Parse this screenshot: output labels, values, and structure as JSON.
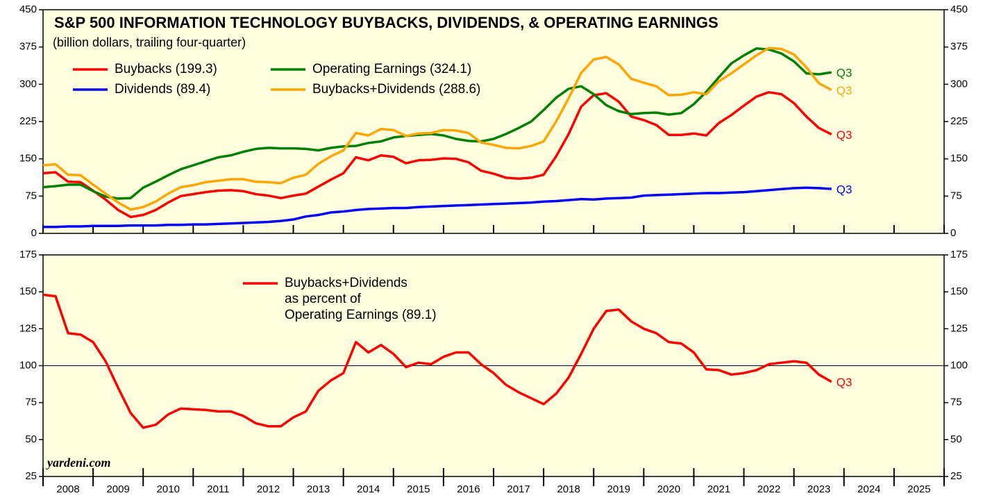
{
  "chart_data": [
    {
      "type": "line",
      "title": "S&P 500 INFORMATION TECHNOLOGY BUYBACKS, DIVIDENDS, & OPERATING EARNINGS",
      "subtitle": "(billion dollars, trailing four-quarter)",
      "x": [
        2008,
        2008.25,
        2008.5,
        2008.75,
        2009,
        2009.25,
        2009.5,
        2009.75,
        2010,
        2010.25,
        2010.5,
        2010.75,
        2011,
        2011.25,
        2011.5,
        2011.75,
        2012,
        2012.25,
        2012.5,
        2012.75,
        2013,
        2013.25,
        2013.5,
        2013.75,
        2014,
        2014.25,
        2014.5,
        2014.75,
        2015,
        2015.25,
        2015.5,
        2015.75,
        2016,
        2016.25,
        2016.5,
        2016.75,
        2017,
        2017.25,
        2017.5,
        2017.75,
        2018,
        2018.25,
        2018.5,
        2018.75,
        2019,
        2019.25,
        2019.5,
        2019.75,
        2020,
        2020.25,
        2020.5,
        2020.75,
        2021,
        2021.25,
        2021.5,
        2021.75,
        2022,
        2022.25,
        2022.5,
        2022.75,
        2023,
        2023.25,
        2023.5,
        2023.75
      ],
      "xlim": [
        2008,
        2026
      ],
      "xticks": [
        2008,
        2009,
        2010,
        2011,
        2012,
        2013,
        2014,
        2015,
        2016,
        2017,
        2018,
        2019,
        2020,
        2021,
        2022,
        2023,
        2024,
        2025,
        2026
      ],
      "ylim": [
        0,
        450
      ],
      "yticks": [
        0,
        75,
        150,
        225,
        300,
        375,
        450
      ],
      "series": [
        {
          "name": "Buybacks (199.3)",
          "color": "#ff0000",
          "end_label": "Q3",
          "values": [
            121,
            123,
            104,
            103,
            86,
            68,
            47,
            33,
            37,
            47,
            62,
            75,
            79,
            83,
            86,
            87,
            85,
            79,
            76,
            71,
            76,
            80,
            94,
            108,
            121,
            153,
            147,
            157,
            154,
            141,
            147,
            148,
            151,
            150,
            143,
            126,
            120,
            112,
            110,
            112,
            118,
            155,
            200,
            255,
            278,
            282,
            265,
            235,
            228,
            218,
            198,
            198,
            201,
            197,
            222,
            238,
            257,
            275,
            284,
            280,
            262,
            235,
            212,
            199.3
          ]
        },
        {
          "name": "Dividends (89.4)",
          "color": "#0000ff",
          "end_label": "Q3",
          "values": [
            13,
            13,
            14,
            14,
            15,
            15,
            15,
            16,
            16,
            16,
            17,
            17,
            18,
            18,
            19,
            20,
            21,
            22,
            23,
            25,
            28,
            34,
            37,
            42,
            44,
            47,
            49,
            50,
            51,
            51,
            53,
            54,
            55,
            56,
            57,
            58,
            59,
            60,
            61,
            62,
            64,
            65,
            67,
            69,
            68,
            70,
            71,
            72,
            76,
            77,
            78,
            79,
            80,
            81,
            81,
            82,
            83,
            85,
            87,
            89,
            91,
            92,
            91,
            89.4
          ]
        },
        {
          "name": "Operating Earnings (324.1)",
          "color": "#008000",
          "end_label": "Q3",
          "values": [
            93,
            95,
            98,
            98,
            85,
            74,
            70,
            71,
            92,
            104,
            117,
            129,
            137,
            145,
            153,
            157,
            164,
            170,
            172,
            171,
            171,
            170,
            167,
            172,
            175,
            176,
            182,
            185,
            193,
            196,
            198,
            200,
            197,
            190,
            186,
            185,
            190,
            200,
            212,
            225,
            248,
            273,
            291,
            296,
            280,
            258,
            246,
            240,
            242,
            243,
            239,
            242,
            260,
            285,
            314,
            342,
            358,
            372,
            370,
            362,
            346,
            322,
            320,
            324.1
          ]
        },
        {
          "name": "Buybacks+Dividends (288.6)",
          "color": "#ffa500",
          "end_label": "Q3",
          "values": [
            137,
            139,
            118,
            117,
            98,
            80,
            62,
            48,
            53,
            64,
            80,
            93,
            97,
            103,
            106,
            109,
            109,
            104,
            103,
            101,
            112,
            118,
            140,
            155,
            167,
            202,
            197,
            210,
            208,
            196,
            201,
            202,
            208,
            207,
            202,
            183,
            178,
            172,
            171,
            176,
            185,
            225,
            272,
            323,
            350,
            355,
            340,
            311,
            303,
            296,
            278,
            279,
            284,
            280,
            306,
            322,
            340,
            358,
            373,
            371,
            360,
            334,
            302,
            288.6
          ]
        }
      ]
    },
    {
      "type": "line",
      "source": "yardeni.com",
      "year_labels": [
        "2008",
        "2009",
        "2010",
        "2011",
        "2012",
        "2013",
        "2014",
        "2015",
        "2016",
        "2017",
        "2018",
        "2019",
        "2020",
        "2021",
        "2022",
        "2023",
        "2024",
        "2025"
      ],
      "x": [
        2008,
        2008.25,
        2008.5,
        2008.75,
        2009,
        2009.25,
        2009.5,
        2009.75,
        2010,
        2010.25,
        2010.5,
        2010.75,
        2011,
        2011.25,
        2011.5,
        2011.75,
        2012,
        2012.25,
        2012.5,
        2012.75,
        2013,
        2013.25,
        2013.5,
        2013.75,
        2014,
        2014.25,
        2014.5,
        2014.75,
        2015,
        2015.25,
        2015.5,
        2015.75,
        2016,
        2016.25,
        2016.5,
        2016.75,
        2017,
        2017.25,
        2017.5,
        2017.75,
        2018,
        2018.25,
        2018.5,
        2018.75,
        2019,
        2019.25,
        2019.5,
        2019.75,
        2020,
        2020.25,
        2020.5,
        2020.75,
        2021,
        2021.25,
        2021.5,
        2021.75,
        2022,
        2022.25,
        2022.5,
        2022.75,
        2023,
        2023.25,
        2023.5,
        2023.75
      ],
      "xlim": [
        2008,
        2026
      ],
      "xticks": [
        2008,
        2009,
        2010,
        2011,
        2012,
        2013,
        2014,
        2015,
        2016,
        2017,
        2018,
        2019,
        2020,
        2021,
        2022,
        2023,
        2024,
        2025,
        2026
      ],
      "ylim": [
        25,
        175
      ],
      "yticks": [
        25,
        50,
        75,
        100,
        125,
        150,
        175
      ],
      "reference_line": 100,
      "series": [
        {
          "name": [
            "Buybacks+Dividends",
            "as percent of",
            "Operating Earnings (89.1)"
          ],
          "color": "#ff0000",
          "end_label": "Q3",
          "values": [
            148,
            147,
            122,
            121,
            116,
            103,
            85,
            68,
            58,
            60,
            67,
            71,
            70.5,
            70,
            69,
            69,
            66,
            61,
            59,
            59,
            65,
            69,
            83,
            90,
            95,
            116,
            109,
            114,
            108,
            99,
            102,
            101,
            106,
            109,
            109,
            101,
            95,
            87,
            82,
            78,
            74,
            81,
            92,
            108,
            125,
            137,
            138,
            130,
            125,
            122,
            116,
            115,
            109,
            97.5,
            97,
            94,
            95,
            97,
            101,
            102,
            103,
            102,
            94,
            89.1
          ]
        }
      ]
    }
  ]
}
